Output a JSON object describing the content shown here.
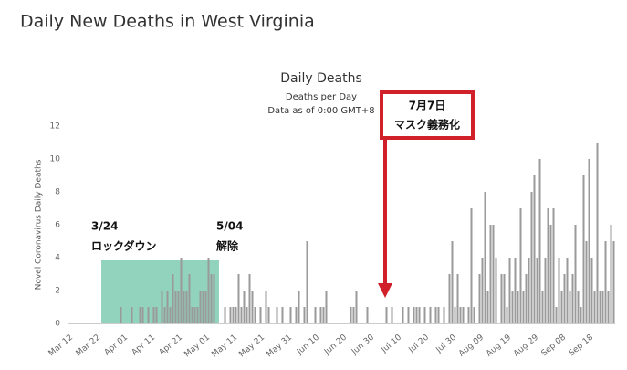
{
  "header": {
    "title": "Daily New Deaths in West Virginia"
  },
  "chart_data": {
    "type": "bar",
    "title": "Daily Deaths",
    "subtitle": "Deaths per Day",
    "note": "Data as of 0:00 GMT+8",
    "y_label": "Novel Coronavirus Daily Deaths",
    "color": "#9a9a9a",
    "ylim": [
      0,
      12
    ],
    "yticks": [
      0,
      2,
      4,
      6,
      8,
      10,
      12
    ],
    "categories": [
      "Mar 12",
      null,
      null,
      null,
      null,
      null,
      null,
      null,
      null,
      null,
      "Mar 22",
      null,
      null,
      null,
      null,
      null,
      null,
      null,
      null,
      null,
      "Apr 01",
      null,
      null,
      null,
      null,
      null,
      null,
      null,
      null,
      null,
      "Apr 11",
      null,
      null,
      null,
      null,
      null,
      null,
      null,
      null,
      null,
      "Apr 21",
      null,
      null,
      null,
      null,
      null,
      null,
      null,
      null,
      null,
      "May 01",
      null,
      null,
      null,
      null,
      null,
      null,
      null,
      null,
      null,
      "May 11",
      null,
      null,
      null,
      null,
      null,
      null,
      null,
      null,
      null,
      "May 21",
      null,
      null,
      null,
      null,
      null,
      null,
      null,
      null,
      null,
      "May 31",
      null,
      null,
      null,
      null,
      null,
      null,
      null,
      null,
      null,
      "Jun 10",
      null,
      null,
      null,
      null,
      null,
      null,
      null,
      null,
      null,
      "Jun 20",
      null,
      null,
      null,
      null,
      null,
      null,
      null,
      null,
      null,
      "Jun 30",
      null,
      null,
      null,
      null,
      null,
      null,
      null,
      null,
      null,
      "Jul 10",
      null,
      null,
      null,
      null,
      null,
      null,
      null,
      null,
      null,
      "Jul 20",
      null,
      null,
      null,
      null,
      null,
      null,
      null,
      null,
      null,
      "Jul 30",
      null,
      null,
      null,
      null,
      null,
      null,
      null,
      null,
      null,
      "Aug 09",
      null,
      null,
      null,
      null,
      null,
      null,
      null,
      null,
      null,
      "Aug 19",
      null,
      null,
      null,
      null,
      null,
      null,
      null,
      null,
      null,
      "Aug 29",
      null,
      null,
      null,
      null,
      null,
      null,
      null,
      null,
      null,
      "Sep 08",
      null,
      null,
      null,
      null,
      null,
      null,
      null,
      null,
      null,
      "Sep 18",
      null,
      null,
      null,
      null,
      null,
      null,
      null,
      null,
      null
    ],
    "values": [
      0,
      0,
      0,
      0,
      0,
      0,
      0,
      0,
      0,
      0,
      0,
      0,
      0,
      0,
      0,
      0,
      0,
      0,
      0,
      1,
      0,
      0,
      0,
      1,
      0,
      0,
      1,
      1,
      0,
      1,
      0,
      1,
      1,
      0,
      2,
      1,
      2,
      1,
      3,
      2,
      2,
      4,
      2,
      2,
      3,
      1,
      1,
      1,
      2,
      2,
      2,
      4,
      3,
      3,
      0,
      0,
      0,
      1,
      0,
      1,
      1,
      1,
      3,
      1,
      2,
      1,
      3,
      2,
      1,
      0,
      1,
      0,
      2,
      1,
      0,
      0,
      1,
      0,
      1,
      0,
      0,
      1,
      0,
      1,
      2,
      0,
      1,
      5,
      0,
      0,
      1,
      0,
      1,
      1,
      2,
      0,
      0,
      0,
      0,
      0,
      0,
      0,
      0,
      1,
      1,
      2,
      0,
      0,
      0,
      1,
      0,
      0,
      0,
      0,
      0,
      0,
      1,
      0,
      1,
      0,
      0,
      0,
      1,
      0,
      1,
      0,
      1,
      1,
      1,
      0,
      1,
      0,
      1,
      0,
      1,
      1,
      0,
      1,
      0,
      3,
      5,
      1,
      3,
      1,
      1,
      0,
      1,
      7,
      1,
      0,
      3,
      4,
      8,
      2,
      6,
      6,
      4,
      0,
      3,
      3,
      1,
      4,
      2,
      4,
      2,
      7,
      2,
      3,
      4,
      8,
      9,
      4,
      10,
      2,
      4,
      7,
      6,
      7,
      1,
      4,
      2,
      3,
      4,
      2,
      3,
      6,
      2,
      1,
      9,
      5,
      10,
      4,
      2,
      11,
      2,
      2,
      5,
      2,
      6,
      5
    ],
    "annotations": [
      "3/24",
      "ロックダウン",
      "5/04",
      "解除",
      "7月7日",
      "マスク義務化"
    ]
  }
}
